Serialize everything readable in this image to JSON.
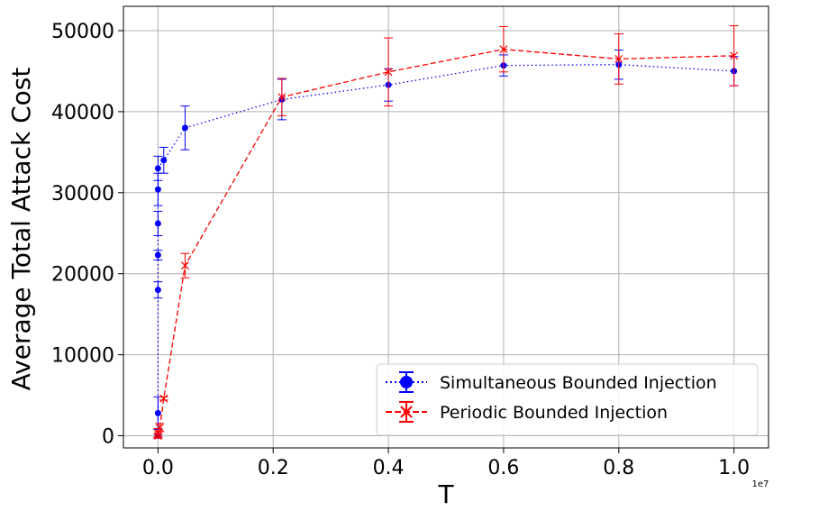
{
  "chart_data": {
    "type": "line",
    "title": "",
    "xlabel": "T",
    "ylabel": "Average Total Attack Cost",
    "x_offset_label": "1e7",
    "xlim": [
      -0.06,
      1.06
    ],
    "ylim": [
      -1500,
      53000
    ],
    "x_ticks": [
      0.0,
      0.2,
      0.4,
      0.6,
      0.8,
      1.0
    ],
    "x_tick_labels": [
      "0.0",
      "0.2",
      "0.4",
      "0.6",
      "0.8",
      "1.0"
    ],
    "y_ticks": [
      0,
      10000,
      20000,
      30000,
      40000,
      50000
    ],
    "y_tick_labels": [
      "0",
      "10000",
      "20000",
      "30000",
      "40000",
      "50000"
    ],
    "grid": true,
    "legend_position": "lower-right",
    "series": [
      {
        "name": "Simultaneous Bounded Injection",
        "color": "#0000ff",
        "linestyle": "dotted",
        "marker": "circle",
        "x": [
          0.0,
          0.0,
          0.0,
          0.0,
          0.0,
          0.0,
          0.0,
          0.01,
          0.047,
          0.215,
          0.4,
          0.6,
          0.8,
          1.0
        ],
        "y": [
          0,
          2800,
          18000,
          22300,
          26200,
          30400,
          33000,
          34000,
          38000,
          41500,
          43300,
          45700,
          45800,
          45000
        ],
        "err": [
          200,
          2000,
          1000,
          600,
          1500,
          2000,
          1500,
          1600,
          2700,
          2500,
          2000,
          1300,
          1800,
          1800
        ]
      },
      {
        "name": "Periodic Bounded Injection",
        "color": "#ff0000",
        "linestyle": "dashed",
        "marker": "x",
        "x": [
          0.0,
          0.0,
          0.003,
          0.01,
          0.047,
          0.215,
          0.4,
          0.6,
          0.8,
          1.0
        ],
        "y": [
          0,
          300,
          1000,
          4600,
          21000,
          41800,
          44900,
          47700,
          46500,
          46900
        ],
        "err": [
          200,
          600,
          500,
          200,
          1500,
          2300,
          4200,
          2800,
          3100,
          3700
        ]
      }
    ]
  }
}
